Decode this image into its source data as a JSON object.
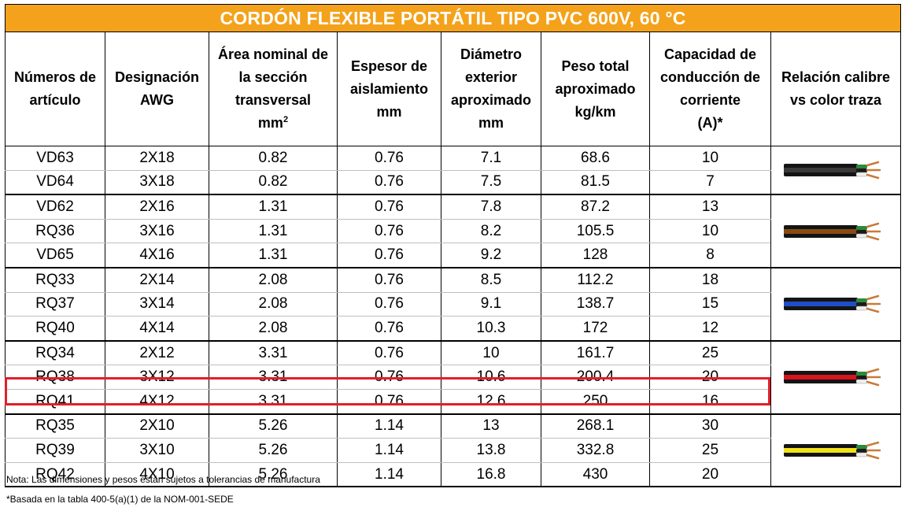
{
  "title": "CORDÓN FLEXIBLE PORTÁTIL TIPO PVC 600V, 60 °C",
  "headers": {
    "articulo": [
      "Números de",
      "artículo"
    ],
    "awg": [
      "Designación",
      "AWG"
    ],
    "area": [
      "Área nominal de",
      "la sección",
      "transversal",
      "mm",
      "2"
    ],
    "espesor": [
      "Espesor de",
      "aislamiento",
      "mm"
    ],
    "diametro": [
      "Diámetro",
      "exterior",
      "aproximado",
      "mm"
    ],
    "peso": [
      "Peso total",
      "aproximado",
      "kg/km"
    ],
    "capacidad": [
      "Capacidad de",
      "conducción de",
      "corriente",
      "(A)*"
    ],
    "relacion": [
      "Relación calibre",
      "vs color traza"
    ]
  },
  "rows": [
    [
      "VD63",
      "2X18",
      "0.82",
      "0.76",
      "7.1",
      "68.6",
      "10"
    ],
    [
      "VD64",
      "3X18",
      "0.82",
      "0.76",
      "7.5",
      "81.5",
      "7"
    ],
    [
      "VD62",
      "2X16",
      "1.31",
      "0.76",
      "7.8",
      "87.2",
      "13"
    ],
    [
      "RQ36",
      "3X16",
      "1.31",
      "0.76",
      "8.2",
      "105.5",
      "10"
    ],
    [
      "VD65",
      "4X16",
      "1.31",
      "0.76",
      "9.2",
      "128",
      "8"
    ],
    [
      "RQ33",
      "2X14",
      "2.08",
      "0.76",
      "8.5",
      "112.2",
      "18"
    ],
    [
      "RQ37",
      "3X14",
      "2.08",
      "0.76",
      "9.1",
      "138.7",
      "15"
    ],
    [
      "RQ40",
      "4X14",
      "2.08",
      "0.76",
      "10.3",
      "172",
      "12"
    ],
    [
      "RQ34",
      "2X12",
      "3.31",
      "0.76",
      "10",
      "161.7",
      "25"
    ],
    [
      "RQ38",
      "3X12",
      "3.31",
      "0.76",
      "10.6",
      "200.4",
      "20"
    ],
    [
      "RQ41",
      "4X12",
      "3.31",
      "0.76",
      "12.6",
      "250",
      "16"
    ],
    [
      "RQ35",
      "2X10",
      "5.26",
      "1.14",
      "13",
      "268.1",
      "30"
    ],
    [
      "RQ39",
      "3X10",
      "5.26",
      "1.14",
      "13.8",
      "332.8",
      "25"
    ],
    [
      "RQ42",
      "4X10",
      "5.26",
      "1.14",
      "16.8",
      "430",
      "20"
    ]
  ],
  "groups": [
    {
      "rows": 2,
      "trace_color": "#3a3a3a",
      "icon": "cable-black-trace-icon"
    },
    {
      "rows": 3,
      "trace_color": "#8a4a12",
      "icon": "cable-brown-trace-icon"
    },
    {
      "rows": 3,
      "trace_color": "#1f4fc6",
      "icon": "cable-blue-trace-icon"
    },
    {
      "rows": 3,
      "trace_color": "#d8141e",
      "icon": "cable-red-trace-icon"
    },
    {
      "rows": 3,
      "trace_color": "#f2e21a",
      "icon": "cable-yellow-trace-icon"
    }
  ],
  "highlighted_row": "RQ41",
  "highlight_color": "#e0202a",
  "title_bg": "#f4a21b",
  "notes": [
    "Nota: Las dimensiones y pesos están sujetos a tolerancias de manufactura",
    "*Basada en la tabla 400-5(a)(1) de la NOM-001-SEDE"
  ]
}
